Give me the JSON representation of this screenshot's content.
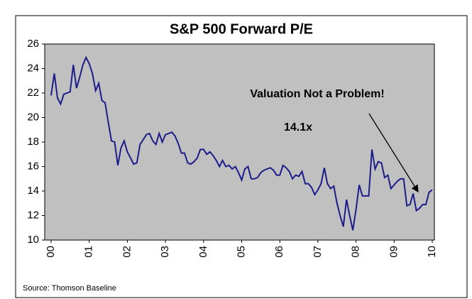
{
  "chart_data": {
    "type": "line",
    "title": "S&P 500 Forward P/E",
    "annotations": [
      "Valuation Not a Problem!",
      "14.1x"
    ],
    "source": "Source: Thomson Baseline",
    "categories": [
      "00",
      null,
      null,
      null,
      null,
      null,
      null,
      null,
      null,
      null,
      null,
      null,
      "01",
      null,
      null,
      null,
      null,
      null,
      null,
      null,
      null,
      null,
      null,
      null,
      "02",
      null,
      null,
      null,
      null,
      null,
      null,
      null,
      null,
      null,
      null,
      null,
      "03",
      null,
      null,
      null,
      null,
      null,
      null,
      null,
      null,
      null,
      null,
      null,
      "04",
      null,
      null,
      null,
      null,
      null,
      null,
      null,
      null,
      null,
      null,
      null,
      "05",
      null,
      null,
      null,
      null,
      null,
      null,
      null,
      null,
      null,
      null,
      null,
      "06",
      null,
      null,
      null,
      null,
      null,
      null,
      null,
      null,
      null,
      null,
      null,
      "07",
      null,
      null,
      null,
      null,
      null,
      null,
      null,
      null,
      null,
      null,
      null,
      "08",
      null,
      null,
      null,
      null,
      null,
      null,
      null,
      null,
      null,
      null,
      null,
      "09",
      null,
      null,
      null,
      null,
      null,
      null,
      null,
      null,
      null,
      null,
      null,
      "10"
    ],
    "series": [
      {
        "color": "#1c1c8a",
        "values": [
          21.8,
          23.6,
          21.6,
          21.1,
          21.9,
          22.0,
          22.1,
          24.3,
          22.4,
          23.3,
          24.3,
          24.9,
          24.4,
          23.6,
          22.2,
          22.8,
          21.4,
          21.2,
          19.6,
          18.1,
          18.0,
          16.1,
          17.5,
          18.1,
          17.2,
          16.7,
          16.2,
          16.3,
          17.8,
          18.2,
          18.6,
          18.7,
          18.1,
          17.8,
          18.7,
          18.0,
          18.6,
          18.7,
          18.8,
          18.5,
          17.9,
          17.1,
          17.1,
          16.3,
          16.2,
          16.4,
          16.7,
          17.4,
          17.4,
          17.0,
          17.2,
          16.9,
          16.5,
          16.0,
          16.5,
          16.0,
          16.1,
          15.8,
          16.0,
          15.5,
          14.9,
          15.8,
          16.0,
          15.0,
          15.0,
          15.1,
          15.5,
          15.7,
          15.8,
          15.9,
          15.7,
          15.3,
          15.3,
          16.1,
          15.9,
          15.6,
          15.0,
          15.3,
          15.2,
          15.6,
          14.6,
          14.6,
          14.3,
          13.7,
          14.1,
          14.6,
          15.9,
          14.6,
          14.2,
          14.4,
          13.0,
          12.0,
          11.1,
          13.3,
          12.0,
          10.8,
          12.5,
          14.5,
          13.6,
          13.6,
          13.6,
          17.4,
          15.8,
          16.4,
          16.3,
          15.1,
          15.3,
          14.2,
          14.5,
          14.8,
          15.0,
          15.0,
          12.8,
          12.9,
          13.8,
          12.4,
          12.6,
          12.9,
          12.9,
          13.9,
          14.1
        ]
      }
    ],
    "ylim": [
      10,
      26
    ],
    "yticks": [
      10,
      12,
      14,
      16,
      18,
      20,
      22,
      24,
      26
    ],
    "plot_background": "#c0c0c0"
  }
}
